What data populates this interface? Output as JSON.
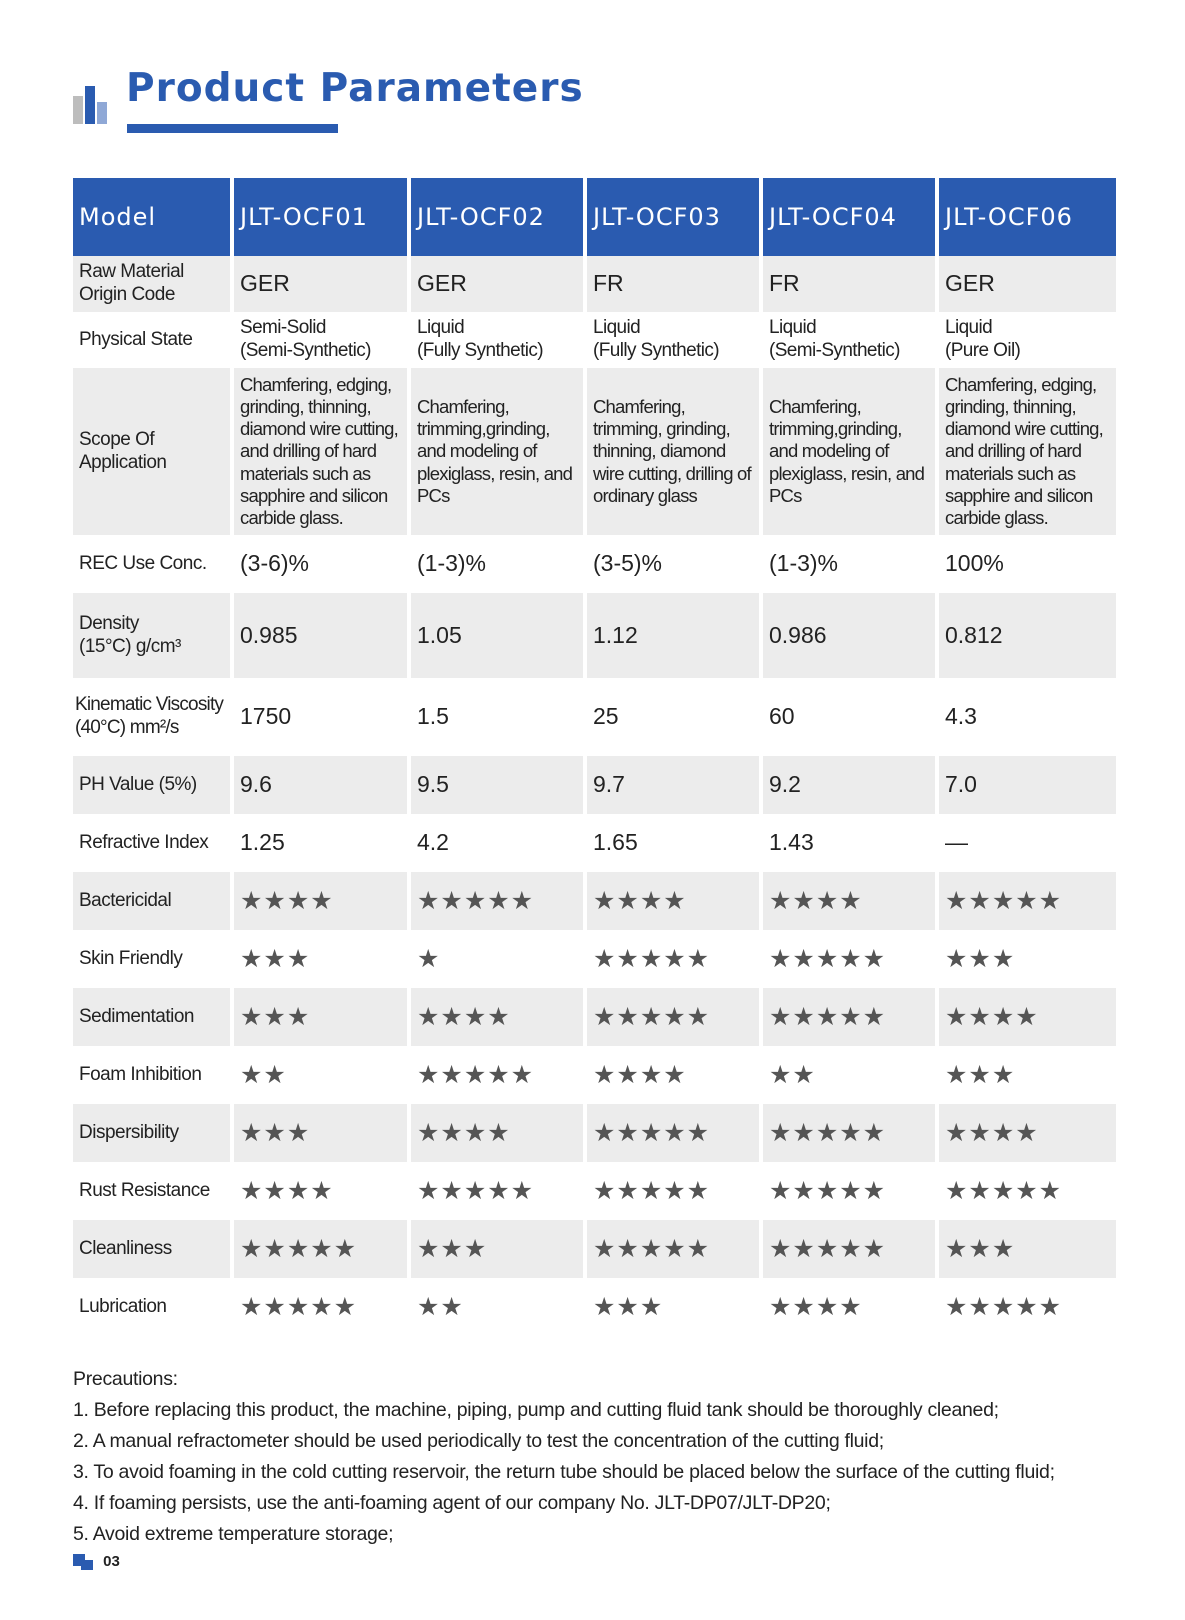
{
  "header": {
    "title": "Product Parameters",
    "icon": "bar-chart-icon",
    "accent_color": "#2a5bb0"
  },
  "table": {
    "model_label": "Model",
    "models": [
      "JLT-OCF01",
      "JLT-OCF02",
      "JLT-OCF03",
      "JLT-OCF04",
      "JLT-OCF06"
    ],
    "rows": {
      "origin": {
        "label_line1": "Raw Material",
        "label_line2": "Origin Code",
        "values": [
          "GER",
          "GER",
          "FR",
          "FR",
          "GER"
        ]
      },
      "physical": {
        "label": "Physical State",
        "line1": [
          "Semi-Solid",
          "Liquid",
          "Liquid",
          "Liquid",
          "Liquid"
        ],
        "line2": [
          "(Semi-Synthetic)",
          "(Fully Synthetic)",
          "(Fully Synthetic)",
          "(Semi-Synthetic)",
          "(Pure Oil)"
        ]
      },
      "scope": {
        "label_line1": "Scope Of",
        "label_line2": "Application",
        "values": [
          "Chamfering, edging, grinding, thinning, diamond wire cutting, and drilling of hard materials such as sapphire and silicon carbide glass.",
          "Chamfering, trimming,grinding, and modeling of plexiglass, resin, and PCs",
          "Chamfering, trimming, grinding, thinning, diamond wire cutting, drilling of ordinary glass",
          "Chamfering, trimming,grinding, and modeling of plexiglass, resin, and PCs",
          "Chamfering, edging, grinding, thinning, diamond wire cutting, and drilling of hard materials such as sapphire and silicon carbide glass."
        ]
      },
      "rec": {
        "label": "REC Use Conc.",
        "values": [
          "(3-6)%",
          "(1-3)%",
          "(3-5)%",
          "(1-3)%",
          "100%"
        ]
      },
      "density": {
        "label_line1": "Density",
        "label_line2": "(15°C)   g/cm³",
        "values": [
          "0.985",
          "1.05",
          "1.12",
          "0.986",
          "0.812"
        ]
      },
      "viscosity": {
        "label_line1": "Kinematic Viscosity",
        "label_line2": "(40°C)   mm²/s",
        "values": [
          "1750",
          "1.5",
          "25",
          "60",
          "4.3"
        ]
      },
      "ph": {
        "label": "PH Value   (5%)",
        "values": [
          "9.6",
          "9.5",
          "9.7",
          "9.2",
          "7.0"
        ]
      },
      "refractive": {
        "label": "Refractive Index",
        "values": [
          "1.25",
          "4.2",
          "1.65",
          "1.43",
          "—"
        ]
      },
      "bactericidal": {
        "label": "Bactericidal",
        "values": [
          "★★★★",
          "★★★★★",
          "★★★★",
          "★★★★",
          "★★★★★"
        ]
      },
      "skin": {
        "label": "Skin Friendly",
        "values": [
          "★★★",
          "★",
          "★★★★★",
          "★★★★★",
          "★★★"
        ]
      },
      "sedimentation": {
        "label": "Sedimentation",
        "values": [
          "★★★",
          "★★★★",
          "★★★★★",
          "★★★★★",
          "★★★★"
        ]
      },
      "foam": {
        "label": "Foam Inhibition",
        "values": [
          "★★",
          "★★★★★",
          "★★★★",
          "★★",
          "★★★"
        ]
      },
      "dispersibility": {
        "label": "Dispersibility",
        "values": [
          "★★★",
          "★★★★",
          "★★★★★",
          "★★★★★",
          "★★★★"
        ]
      },
      "rust": {
        "label": "Rust Resistance",
        "values": [
          "★★★★",
          "★★★★★",
          "★★★★★",
          "★★★★★",
          "★★★★★"
        ]
      },
      "cleanliness": {
        "label": "Cleanliness",
        "values": [
          "★★★★★",
          "★★★",
          "★★★★★",
          "★★★★★",
          "★★★"
        ]
      },
      "lubrication": {
        "label": "Lubrication",
        "values": [
          "★★★★★",
          "★★",
          "★★★",
          "★★★★",
          "★★★★★"
        ]
      }
    }
  },
  "precautions": {
    "heading": "Precautions:",
    "items": [
      "1. Before replacing this product, the machine, piping, pump and cutting fluid tank should be thoroughly cleaned;",
      "2. A manual refractometer should be used periodically to test the concentration of the cutting fluid;",
      "3. To avoid foaming in the cold cutting reservoir, the return tube should be placed below the surface of the cutting fluid;",
      "4. If foaming persists, use the anti-foaming agent of our company No. JLT-DP07/JLT-DP20;",
      "5. Avoid extreme temperature storage;"
    ]
  },
  "footer": {
    "page_number": "03",
    "icon": "page-marker-icon"
  }
}
